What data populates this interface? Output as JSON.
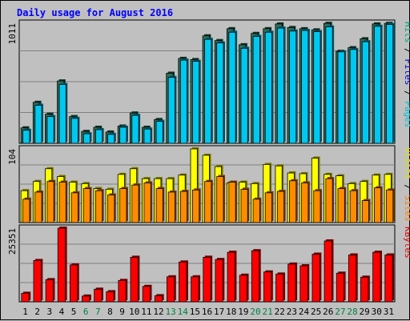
{
  "chart_data": {
    "type": "bar",
    "title": "Daily usage for August 2016",
    "categories": [
      "1",
      "2",
      "3",
      "4",
      "5",
      "6",
      "7",
      "8",
      "9",
      "10",
      "11",
      "12",
      "13",
      "14",
      "15",
      "16",
      "17",
      "18",
      "19",
      "20",
      "21",
      "22",
      "23",
      "24",
      "25",
      "26",
      "27",
      "28",
      "29",
      "30",
      "31"
    ],
    "weekend_days": [
      "6",
      "7",
      "13",
      "14",
      "20",
      "21",
      "27",
      "28"
    ],
    "panels": [
      {
        "key": "hits_files_pages",
        "ymax_label": "1011",
        "ymax": 1011,
        "ylim": [
          0,
          1011
        ],
        "side_label": [
          {
            "text": "Pages",
            "color": "#00c0d0"
          },
          {
            "text": " / ",
            "color": "#000000"
          },
          {
            "text": "Files",
            "color": "#0000c0"
          },
          {
            "text": " / ",
            "color": "#000000"
          },
          {
            "text": "Hits",
            "color": "#00a080"
          }
        ],
        "series": [
          {
            "name": "Hits",
            "color": "#2e6e5a",
            "values": [
              130,
              345,
              245,
              525,
              225,
              100,
              135,
              95,
              145,
              255,
              135,
              200,
              590,
              715,
              705,
              905,
              865,
              965,
              830,
              925,
              965,
              1005,
              975,
              965,
              955,
              1010,
              775,
              805,
              880,
              1005,
              1010
            ]
          },
          {
            "name": "Pages",
            "color": "#00c8f0",
            "values": [
              110,
              320,
              225,
              495,
              210,
              80,
              115,
              75,
              135,
              235,
              120,
              185,
              555,
              700,
              690,
              875,
              845,
              935,
              800,
              900,
              935,
              970,
              945,
              950,
              940,
              980,
              770,
              790,
              855,
              985,
              1000
            ]
          }
        ]
      },
      {
        "key": "visits_sites",
        "ymax_label": "104",
        "ymax": 104,
        "ylim": [
          0,
          104
        ],
        "side_label": [
          {
            "text": "Sites",
            "color": "#ff8000"
          },
          {
            "text": " / ",
            "color": "#000000"
          },
          {
            "text": "Visits",
            "color": "#e0e000"
          }
        ],
        "series": [
          {
            "name": "Visits",
            "color": "#ffff00",
            "values": [
              45,
              58,
              76,
              65,
              57,
              55,
              48,
              47,
              68,
              76,
              62,
              62,
              62,
              67,
              104,
              95,
              79,
              56,
              57,
              55,
              82,
              80,
              70,
              69,
              91,
              68,
              66,
              55,
              58,
              67,
              68
            ]
          },
          {
            "name": "Sites",
            "color": "#ff8c00",
            "values": [
              33,
              43,
              58,
              57,
              42,
              48,
              45,
              39,
              48,
              53,
              56,
              48,
              43,
              44,
              46,
              58,
              65,
              57,
              47,
              33,
              42,
              44,
              59,
              56,
              45,
              62,
              48,
              45,
              31,
              49,
              46
            ]
          }
        ]
      },
      {
        "key": "kbytes",
        "ymax_label": "25351",
        "ymax": 25351,
        "ylim": [
          0,
          25351
        ],
        "side_label": [
          {
            "text": "KBytes",
            "color": "#e00000"
          }
        ],
        "series": [
          {
            "name": "KBytes",
            "color": "#ff0000",
            "values": [
              2930,
              14210,
              7620,
              25351,
              12700,
              1980,
              4330,
              3470,
              7350,
              15330,
              5300,
              2100,
              8600,
              13700,
              8600,
              15330,
              14560,
              17050,
              9150,
              17580,
              10280,
              9550,
              12990,
              12400,
              16400,
              20950,
              9850,
              16120,
              8470,
              17050,
              16120
            ]
          }
        ]
      }
    ]
  },
  "colors": {
    "background": "#c0c0c0",
    "plot_background": "#c0c0c0",
    "title": "#0000ff",
    "weekend_label": "#008040",
    "weekday_label": "#000000"
  }
}
